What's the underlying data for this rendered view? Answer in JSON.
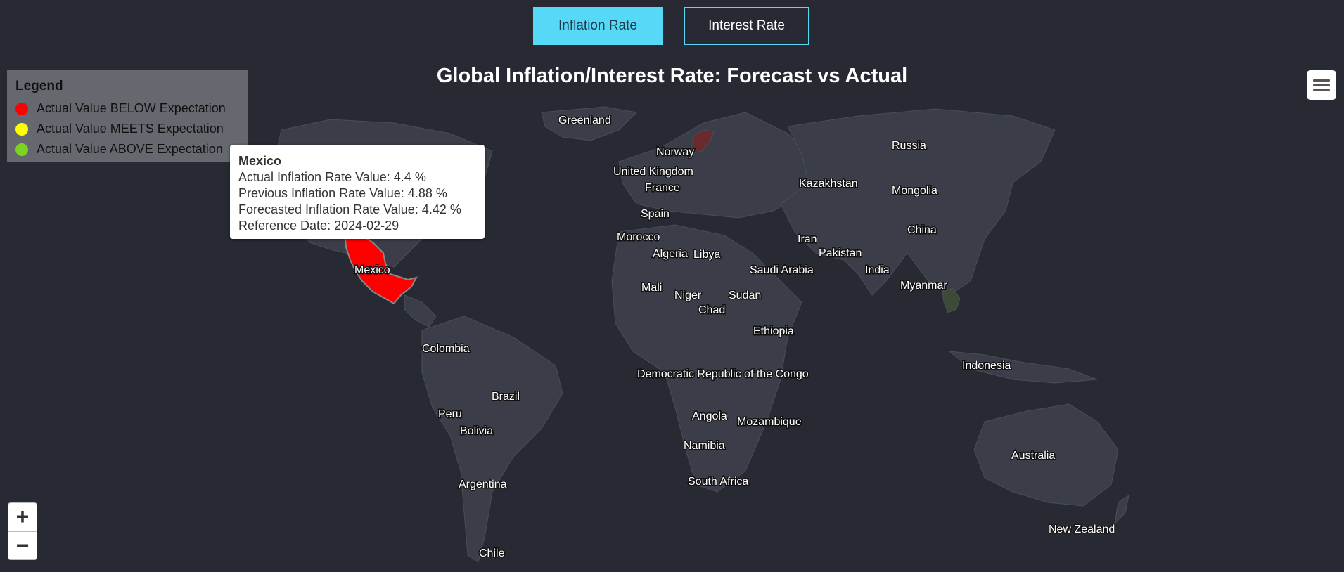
{
  "tabs": [
    {
      "label": "Inflation Rate",
      "active": true
    },
    {
      "label": "Interest Rate",
      "active": false
    }
  ],
  "title": "Global Inflation/Interest Rate: Forecast vs Actual",
  "legend": {
    "title": "Legend",
    "items": [
      {
        "label": "Actual Value BELOW Expectation",
        "color": "#ff0000"
      },
      {
        "label": "Actual Value MEETS Expectation",
        "color": "#ffff00"
      },
      {
        "label": "Actual Value ABOVE Expectation",
        "color": "#7ed321"
      }
    ]
  },
  "tooltip": {
    "country": "Mexico",
    "line1": "Actual Inflation Rate Value: 4.4 %",
    "line2": "Previous Inflation Rate Value: 4.88 %",
    "line3": "Forecasted Inflation Rate Value: 4.42 %",
    "line4": "Reference Date: 2024-02-29"
  },
  "zoom": {
    "in": "+",
    "out": "−"
  },
  "colors": {
    "background": "#272a33",
    "land": "#3b3e48",
    "below": "#ff0000",
    "meets": "#ffff00",
    "above": "#7ed321",
    "accent": "#56d9f7"
  },
  "map_labels": {
    "greenland": "Greenland",
    "norway": "Norway",
    "russia": "Russia",
    "united_kingdom": "United Kingdom",
    "france": "France",
    "kazakhstan": "Kazakhstan",
    "mongolia": "Mongolia",
    "spain": "Spain",
    "china": "China",
    "morocco": "Morocco",
    "iran": "Iran",
    "algeria": "Algeria",
    "libya": "Libya",
    "pakistan": "Pakistan",
    "mexico": "Mexico",
    "saudi_arabia": "Saudi Arabia",
    "india": "India",
    "mali": "Mali",
    "myanmar": "Myanmar",
    "niger": "Niger",
    "sudan": "Sudan",
    "chad": "Chad",
    "ethiopia": "Ethiopia",
    "colombia": "Colombia",
    "indonesia": "Indonesia",
    "drc": "Democratic Republic of the Congo",
    "brazil": "Brazil",
    "peru": "Peru",
    "angola": "Angola",
    "mozambique": "Mozambique",
    "bolivia": "Bolivia",
    "namibia": "Namibia",
    "australia": "Australia",
    "south_africa": "South Africa",
    "argentina": "Argentina",
    "new_zealand": "New Zealand",
    "chile": "Chile"
  }
}
